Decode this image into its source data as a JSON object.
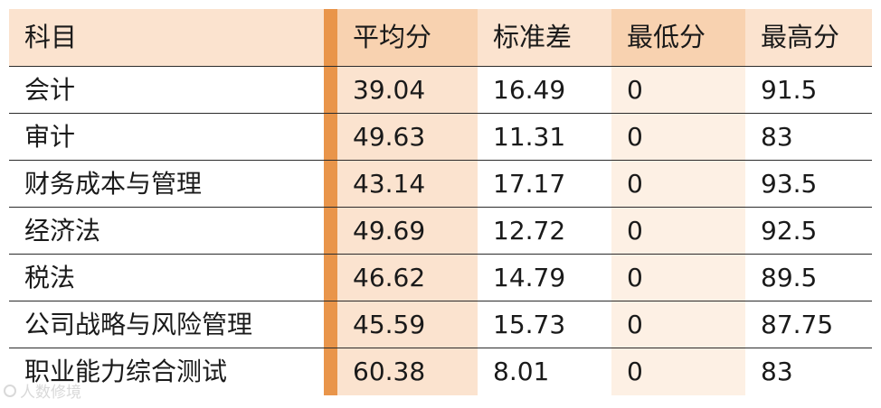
{
  "table": {
    "headers": [
      "科目",
      "平均分",
      "标准差",
      "最低分",
      "最高分"
    ],
    "rows": [
      [
        "会计",
        "39.04",
        "16.49",
        "0",
        "91.5"
      ],
      [
        "审计",
        "49.63",
        "11.31",
        "0",
        "83"
      ],
      [
        "财务成本与管理",
        "43.14",
        "17.17",
        "0",
        "93.5"
      ],
      [
        "经济法",
        "49.69",
        "12.72",
        "0",
        "92.5"
      ],
      [
        "税法",
        "46.62",
        "14.79",
        "0",
        "89.5"
      ],
      [
        "公司战略与风险管理",
        "45.59",
        "15.73",
        "0",
        "87.75"
      ],
      [
        "职业能力综合测试",
        "60.38",
        "8.01",
        "0",
        "83"
      ]
    ]
  },
  "watermark": {
    "text": "人数修境"
  },
  "colors": {
    "header_bg": "#fbe3cf",
    "header_highlight": "#f8d2b0",
    "accent_bar": "#e9954a",
    "col_mean_bg": "#fbe3cf",
    "col_min_bg": "#fdf0e4"
  }
}
